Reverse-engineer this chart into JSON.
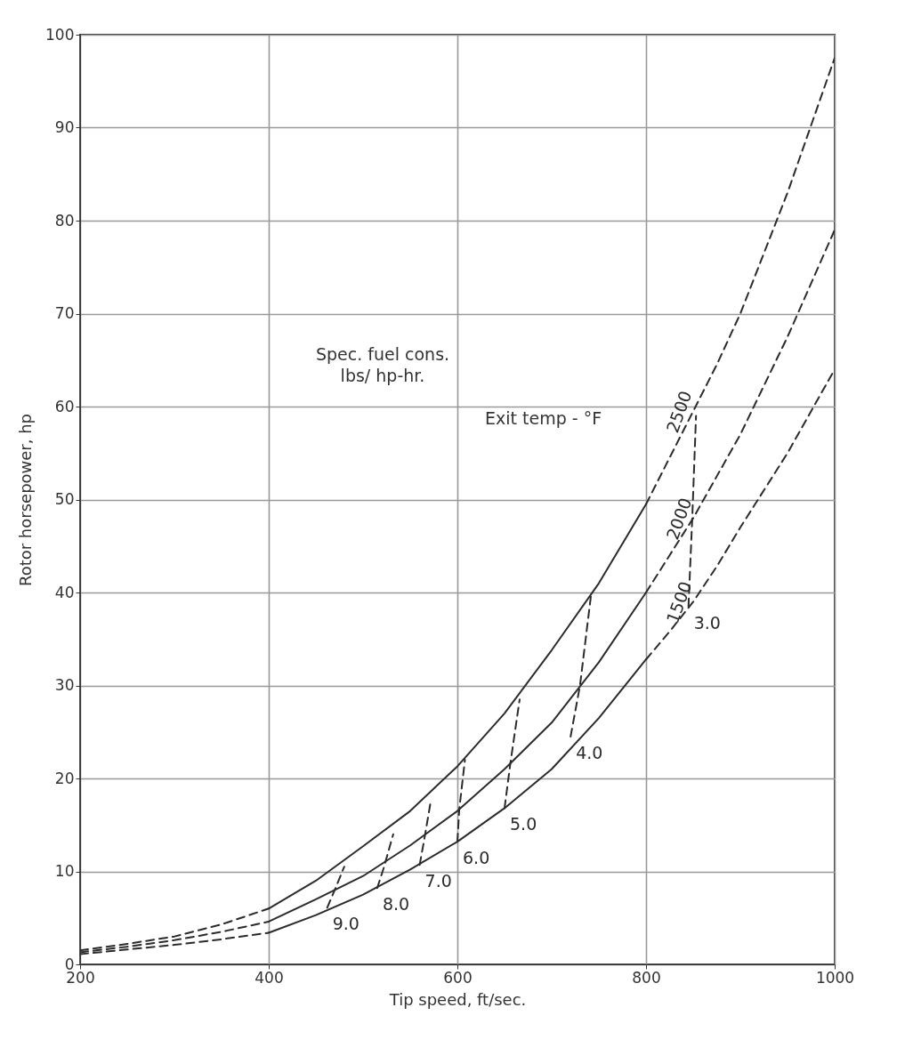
{
  "chart_data": {
    "type": "line",
    "xlabel": "Tip speed, ft/sec.",
    "ylabel": "Rotor horsepower, hp",
    "xlim": [
      200,
      1000
    ],
    "ylim": [
      0,
      100
    ],
    "xticks": [
      200,
      400,
      600,
      800,
      1000
    ],
    "yticks": [
      0,
      10,
      20,
      30,
      40,
      50,
      60,
      70,
      80,
      90,
      100
    ],
    "grid": true,
    "marker": "none",
    "line_style": "solid",
    "annotations": [
      "Exit temp - °F",
      "Spec. fuel cons.\nlbs/ hp-hr."
    ],
    "series": [
      {
        "color": "#2b2b2b",
        "x": [
          400,
          450,
          500,
          550,
          600,
          650,
          700,
          750,
          800
        ],
        "values": [
          6,
          9,
          12.7,
          16.5,
          21.3,
          27,
          33.8,
          41,
          49.5
        ]
      },
      {
        "color": "#2b2b2b",
        "x": [
          400,
          450,
          500,
          550,
          600,
          650,
          700,
          750,
          800
        ],
        "values": [
          4.6,
          7,
          9.5,
          12.8,
          16.5,
          21,
          26,
          32.5,
          40
        ]
      },
      {
        "color": "#2b2b2b",
        "x": [
          400,
          450,
          500,
          550,
          600,
          650,
          700,
          750,
          800
        ],
        "values": [
          3.4,
          5.3,
          7.5,
          10.2,
          13.2,
          16.8,
          21,
          26.5,
          32.8
        ]
      },
      {
        "color": "#2b2b2b",
        "line_style": "dashed",
        "x": [
          200,
          250,
          300,
          350,
          400
        ],
        "values": [
          1.5,
          2.2,
          3,
          4.3,
          6
        ]
      },
      {
        "color": "#2b2b2b",
        "line_style": "dashed",
        "x": [
          200,
          250,
          300,
          350,
          400
        ],
        "values": [
          1.3,
          1.9,
          2.6,
          3.5,
          4.6
        ]
      },
      {
        "color": "#2b2b2b",
        "line_style": "dashed",
        "x": [
          200,
          250,
          300,
          350,
          400
        ],
        "values": [
          1.1,
          1.6,
          2.1,
          2.7,
          3.4
        ]
      },
      {
        "name": "2500",
        "color": "#2b2b2b",
        "line_style": "dashed",
        "x": [
          800,
          825,
          850,
          875,
          900,
          950,
          1000
        ],
        "values": [
          49.5,
          54.5,
          59.5,
          64.5,
          70,
          83,
          97.5
        ]
      },
      {
        "name": "2000",
        "color": "#2b2b2b",
        "line_style": "dashed",
        "x": [
          800,
          825,
          850,
          875,
          900,
          950,
          1000
        ],
        "values": [
          40,
          44,
          48,
          52.5,
          57,
          67.5,
          79
        ]
      },
      {
        "name": "1500",
        "color": "#2b2b2b",
        "line_style": "dashed",
        "x": [
          800,
          825,
          850,
          875,
          900,
          950,
          1000
        ],
        "values": [
          32.8,
          35.8,
          39,
          42.8,
          47,
          55,
          64
        ]
      },
      {
        "name": "3.0",
        "color": "#2b2b2b",
        "line_style": "dashed",
        "x": [
          845,
          849,
          853
        ],
        "values": [
          38.5,
          48,
          59
        ]
      },
      {
        "name": "4.0",
        "color": "#2b2b2b",
        "line_style": "dashed",
        "x": [
          720,
          730,
          742
        ],
        "values": [
          24.5,
          30,
          40
        ]
      },
      {
        "name": "5.0",
        "color": "#2b2b2b",
        "line_style": "dashed",
        "x": [
          650,
          656,
          666
        ],
        "values": [
          16.8,
          21.5,
          28.5
        ]
      },
      {
        "name": "6.0",
        "color": "#2b2b2b",
        "line_style": "dashed",
        "x": [
          600,
          602,
          608
        ],
        "values": [
          13.2,
          16.7,
          22
        ]
      },
      {
        "name": "7.0",
        "color": "#2b2b2b",
        "line_style": "dashed",
        "x": [
          560,
          565,
          572
        ],
        "values": [
          10.7,
          13.5,
          17.7
        ]
      },
      {
        "name": "8.0",
        "color": "#2b2b2b",
        "line_style": "dashed",
        "x": [
          515,
          522,
          532
        ],
        "values": [
          8.2,
          10.4,
          14
        ]
      },
      {
        "name": "9.0",
        "color": "#2b2b2b",
        "line_style": "dashed",
        "x": [
          462,
          470,
          480
        ],
        "values": [
          6.1,
          8,
          10.5
        ]
      }
    ]
  }
}
